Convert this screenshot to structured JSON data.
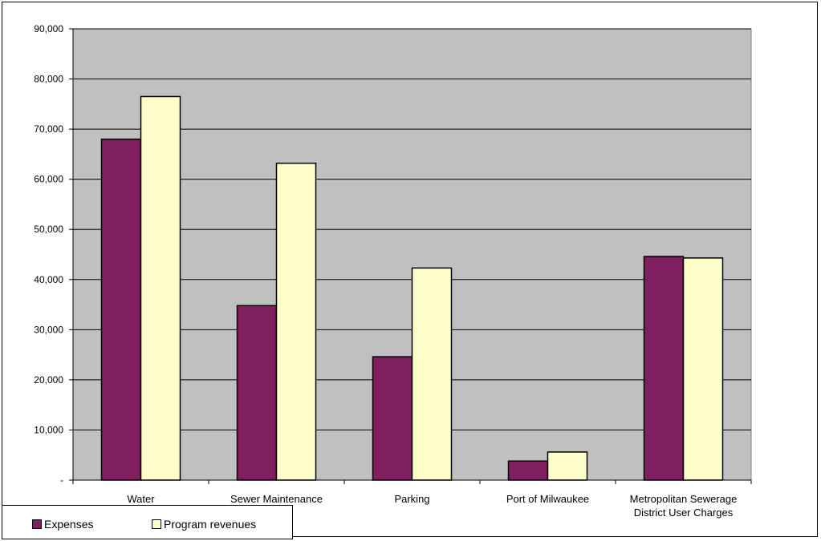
{
  "colors": {
    "plot_background": "#c0c0c0",
    "expenses": "#7f1f5f",
    "program_revenues": "#ffffcc",
    "gridline": "#000000"
  },
  "chart_data": {
    "type": "bar",
    "title": "",
    "xlabel": "",
    "ylabel": "",
    "categories": [
      "Water",
      "Sewer Maintenance",
      "Parking",
      "Port of Milwaukee",
      "Metropolitan Sewerage District User Charges"
    ],
    "series": [
      {
        "name": "Expenses",
        "values": [
          68000,
          34800,
          24600,
          3800,
          44600
        ]
      },
      {
        "name": "Program revenues",
        "values": [
          76500,
          63200,
          42300,
          5600,
          44300
        ]
      }
    ],
    "ylim": [
      0,
      90000
    ],
    "yticks": [
      0,
      10000,
      20000,
      30000,
      40000,
      50000,
      60000,
      70000,
      80000,
      90000
    ],
    "ytick_labels": [
      "-",
      "10,000",
      "20,000",
      "30,000",
      "40,000",
      "50,000",
      "60,000",
      "70,000",
      "80,000",
      "90,000"
    ],
    "grid": true,
    "legend_position": "bottom-left"
  }
}
